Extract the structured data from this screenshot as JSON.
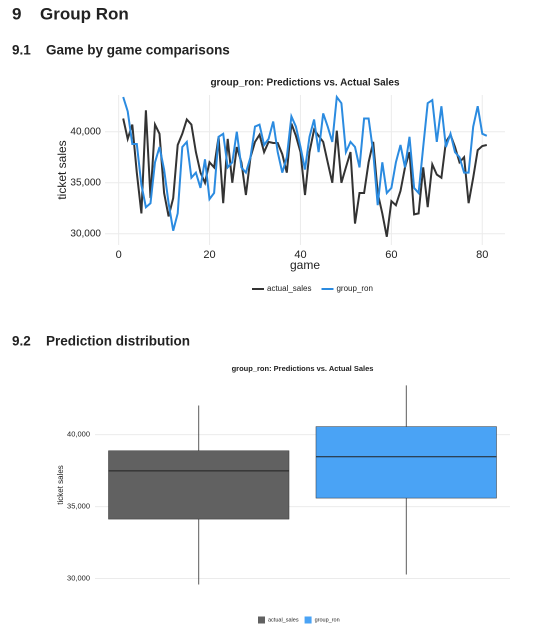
{
  "sections": [
    {
      "number": "9",
      "title": "Group Ron"
    },
    {
      "number": "9.1",
      "title": "Game by game comparisons"
    },
    {
      "number": "9.2",
      "title": "Prediction distribution"
    }
  ],
  "chart_data": [
    {
      "type": "line",
      "title": "group_ron: Predictions vs. Actual Sales",
      "x_label": "game",
      "y_label": "ticket sales",
      "x": [
        1,
        2,
        3,
        4,
        5,
        6,
        7,
        8,
        9,
        10,
        11,
        12,
        13,
        14,
        15,
        16,
        17,
        18,
        19,
        20,
        21,
        22,
        23,
        24,
        25,
        26,
        27,
        28,
        29,
        30,
        31,
        32,
        33,
        34,
        35,
        36,
        37,
        38,
        39,
        40,
        41,
        42,
        43,
        44,
        45,
        46,
        47,
        48,
        49,
        50,
        51,
        52,
        53,
        54,
        55,
        56,
        57,
        58,
        59,
        60,
        61,
        62,
        63,
        64,
        65,
        66,
        67,
        68,
        69,
        70,
        71,
        72,
        73,
        74,
        75,
        76,
        77,
        78,
        79,
        80,
        81
      ],
      "series": [
        {
          "name": "actual_sales",
          "color": "#333333",
          "values": [
            41300,
            39300,
            40700,
            36000,
            32000,
            42100,
            33500,
            40700,
            39800,
            34000,
            31700,
            33500,
            38700,
            39800,
            41200,
            40700,
            38000,
            36000,
            35000,
            37000,
            36500,
            39500,
            33000,
            39300,
            35000,
            38500,
            37000,
            33800,
            37500,
            39000,
            39700,
            38000,
            39000,
            38900,
            38900,
            37800,
            36000,
            40800,
            39600,
            38000,
            33800,
            38000,
            40200,
            39600,
            39000,
            37000,
            35000,
            40100,
            35000,
            36500,
            38000,
            31000,
            34000,
            34000,
            37000,
            39000,
            34000,
            32000,
            29700,
            33200,
            32800,
            34200,
            36500,
            38000,
            31900,
            32000,
            36500,
            32600,
            36800,
            35800,
            35500,
            39000,
            39700,
            38500,
            37000,
            37500,
            33000,
            35500,
            38200,
            38600,
            38700
          ]
        },
        {
          "name": "group_ron",
          "color": "#2b8be0",
          "values": [
            43400,
            42000,
            38800,
            38800,
            34800,
            32600,
            33000,
            37000,
            38500,
            36300,
            33000,
            30300,
            32000,
            38500,
            39000,
            35500,
            36000,
            34500,
            37300,
            33400,
            34000,
            39500,
            39800,
            36500,
            37000,
            40000,
            36500,
            36000,
            37500,
            40500,
            40700,
            38700,
            39300,
            41000,
            38000,
            36000,
            37500,
            41500,
            40500,
            38500,
            36300,
            39500,
            41200,
            38000,
            41800,
            40500,
            39000,
            43400,
            42800,
            38000,
            39000,
            38500,
            36500,
            41300,
            41300,
            38000,
            32800,
            37000,
            34000,
            34500,
            37000,
            38700,
            36500,
            39500,
            34500,
            34000,
            38500,
            42800,
            43100,
            39000,
            42500,
            38500,
            39800,
            38000,
            37500,
            36000,
            36000,
            40500,
            42500,
            39800,
            39600
          ]
        }
      ],
      "xlim": [
        -3,
        85
      ],
      "xticks": [
        0,
        20,
        40,
        60,
        80
      ],
      "ylim": [
        28900,
        43600
      ],
      "yticks": [
        {
          "value": 30000,
          "label": "30,000"
        },
        {
          "value": 35000,
          "label": "35,000"
        },
        {
          "value": 40000,
          "label": "40,000"
        }
      ],
      "grid": true,
      "legend": "bottom"
    },
    {
      "type": "box",
      "title": "group_ron: Predictions vs. Actual Sales",
      "y_label": "ticket sales",
      "series": [
        {
          "name": "actual_sales",
          "color": "#616161",
          "min": 29580,
          "q1": 34130,
          "median": 37480,
          "q3": 38880,
          "max": 42030
        },
        {
          "name": "group_ron",
          "color": "#4aa3f5",
          "min": 30280,
          "q1": 35590,
          "median": 38460,
          "q3": 40560,
          "max": 43430
        }
      ],
      "ylim": [
        29200,
        43800
      ],
      "yticks": [
        {
          "value": 30000,
          "label": "30,000"
        },
        {
          "value": 35000,
          "label": "35,000"
        },
        {
          "value": 40000,
          "label": "40,000"
        }
      ],
      "grid": true,
      "legend": "bottom"
    }
  ]
}
